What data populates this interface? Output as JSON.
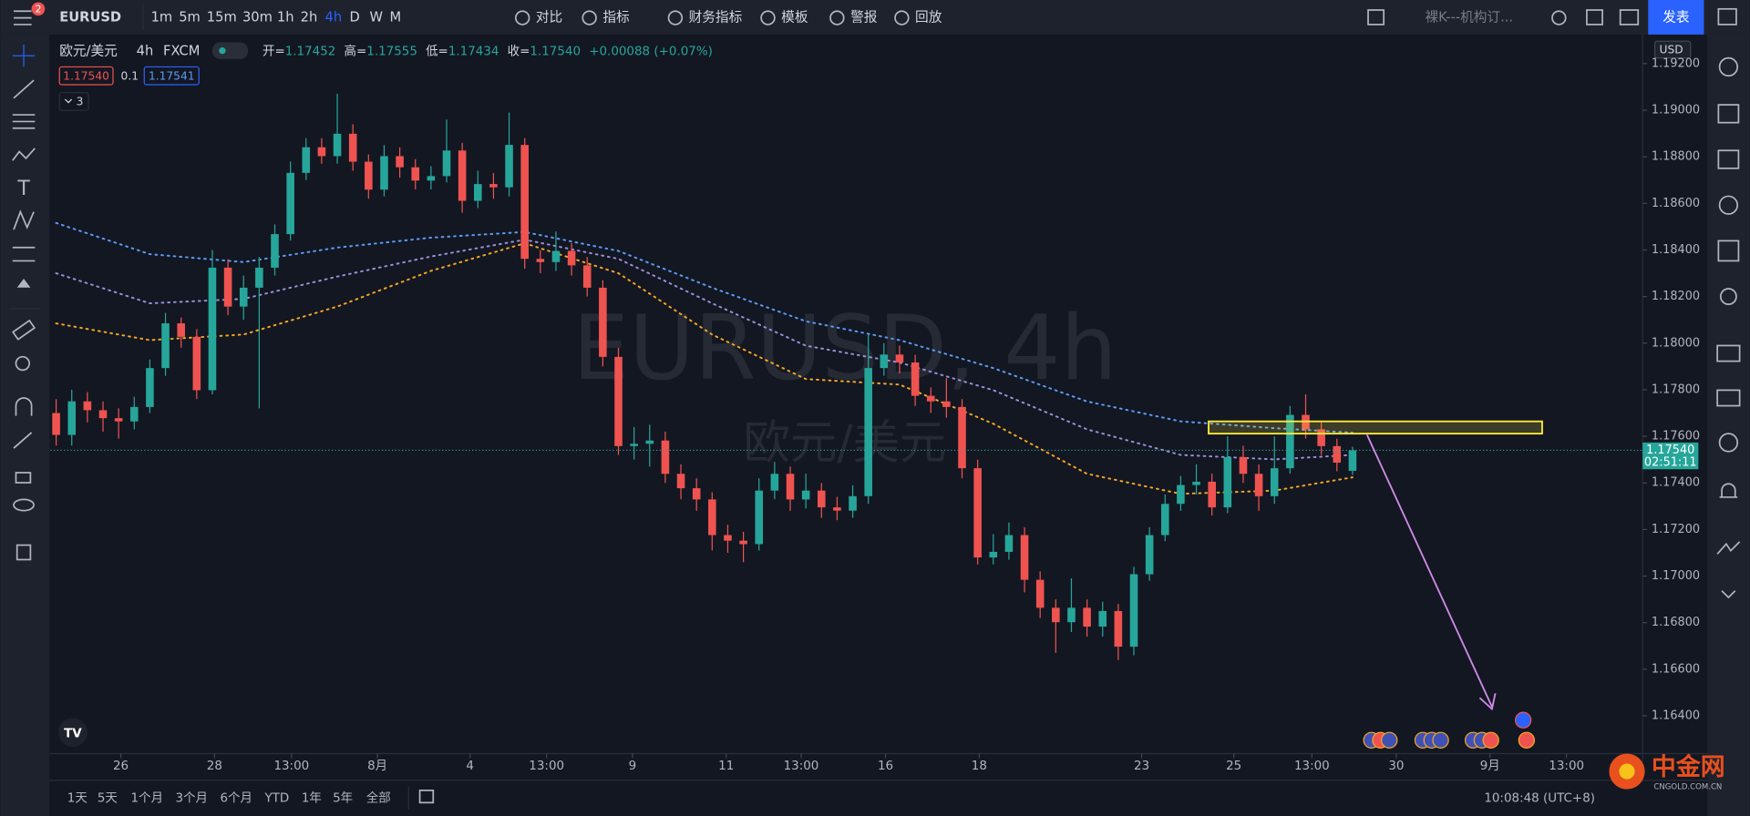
{
  "toolbar": {
    "symbol": "EURUSD",
    "intervals": [
      "1m",
      "5m",
      "15m",
      "30m",
      "1h",
      "2h",
      "4h",
      "D",
      "W",
      "M"
    ],
    "active_interval": "4h",
    "buttons": [
      "对比",
      "指标",
      "财务指标",
      "模板",
      "警报",
      "回放"
    ],
    "layout_name": "裸K---机构订...",
    "publish": "发表",
    "notifications": "2"
  },
  "legend": {
    "open_label": "开=",
    "open": "1.17452",
    "high_label": "高=",
    "high": "1.17555",
    "low_label": "低=",
    "low": "1.17434",
    "close_label": "收=",
    "close": "1.17540",
    "change": "+0.00088 (+0.07%)",
    "sell": "1.17540",
    "spread": "0.1",
    "buy": "1.17541",
    "indicators_count": "3"
  },
  "chart_data": {
    "type": "candlestick",
    "title": "欧元/美元",
    "interval": "4h",
    "source": "FXCM",
    "watermark": "EURUSD, 4h",
    "watermark_sub": "欧元/美元",
    "currency": "USD",
    "up_color": "#26a69a",
    "down_color": "#ef5350",
    "open": [
      1.177,
      1.17606,
      1.1775,
      1.17712,
      1.17678,
      1.17664,
      1.17726,
      1.17893,
      1.18085,
      1.18027,
      1.17798,
      1.18324,
      1.18157,
      1.18238,
      1.18324,
      1.18468,
      1.18731,
      1.18841,
      1.18803,
      1.18899,
      1.18779,
      1.18659,
      1.18803,
      1.18755,
      1.18698,
      1.18717,
      1.18827,
      1.18611,
      1.18683,
      1.18669,
      1.18851,
      1.18362,
      1.18348,
      1.18396,
      1.18334,
      1.18238,
      1.17941,
      1.17558,
      1.17568,
      1.17582,
      1.17439,
      1.17377,
      1.17329,
      1.17176,
      1.17152,
      1.17137,
      1.17367,
      1.17439,
      1.17329,
      1.17367,
      1.17295,
      1.17281,
      1.17343,
      1.17893,
      1.17951,
      1.17917,
      1.17774,
      1.1775,
      1.17726,
      1.17463,
      1.1708,
      1.17104,
      1.17176,
      1.16984,
      1.16864,
      1.16802,
      1.16864,
      1.16783,
      1.1685,
      1.16697,
      1.17008,
      1.17176,
      1.1731,
      1.17391,
      1.17405,
      1.17295,
      1.17511,
      1.17439,
      1.17343,
      1.17463,
      1.17692,
      1.1763,
      1.17558,
      1.17452
    ],
    "high": [
      1.1776,
      1.178,
      1.1779,
      1.1775,
      1.1772,
      1.1777,
      1.1793,
      1.1813,
      1.1811,
      1.1806,
      1.184,
      1.1836,
      1.1829,
      1.1837,
      1.1851,
      1.1878,
      1.1888,
      1.1888,
      1.1907,
      1.1894,
      1.1881,
      1.1885,
      1.1884,
      1.1879,
      1.1876,
      1.1896,
      1.1886,
      1.1874,
      1.1873,
      1.1899,
      1.1888,
      1.184,
      1.1848,
      1.1843,
      1.1837,
      1.1827,
      1.1798,
      1.1764,
      1.1765,
      1.1762,
      1.1748,
      1.1742,
      1.1736,
      1.1722,
      1.1719,
      1.1742,
      1.1749,
      1.1747,
      1.1744,
      1.174,
      1.1734,
      1.1739,
      1.1804,
      1.18,
      1.1799,
      1.1795,
      1.1781,
      1.1785,
      1.1776,
      1.175,
      1.1718,
      1.1723,
      1.1721,
      1.1702,
      1.169,
      1.1699,
      1.169,
      1.1689,
      1.1688,
      1.1704,
      1.1721,
      1.1735,
      1.1743,
      1.1748,
      1.1744,
      1.176,
      1.1756,
      1.1748,
      1.176,
      1.1773,
      1.1778,
      1.1766,
      1.1759,
      1.17555
    ],
    "low": [
      1.1756,
      1.1756,
      1.1766,
      1.1762,
      1.1759,
      1.1763,
      1.177,
      1.1786,
      1.1798,
      1.1776,
      1.1778,
      1.1812,
      1.181,
      1.1772,
      1.1829,
      1.1844,
      1.187,
      1.1877,
      1.1877,
      1.1874,
      1.1862,
      1.1863,
      1.1871,
      1.1866,
      1.1866,
      1.1869,
      1.1856,
      1.1858,
      1.1862,
      1.1863,
      1.1832,
      1.183,
      1.1831,
      1.1829,
      1.182,
      1.179,
      1.1752,
      1.175,
      1.1747,
      1.174,
      1.1733,
      1.1728,
      1.1711,
      1.171,
      1.1706,
      1.1711,
      1.1733,
      1.1728,
      1.1729,
      1.1725,
      1.1724,
      1.1725,
      1.1731,
      1.1786,
      1.1787,
      1.1773,
      1.177,
      1.1768,
      1.1742,
      1.1705,
      1.1705,
      1.1707,
      1.1693,
      1.1682,
      1.1667,
      1.1676,
      1.1674,
      1.1674,
      1.1664,
      1.1666,
      1.1698,
      1.1715,
      1.1728,
      1.1735,
      1.1726,
      1.1727,
      1.174,
      1.1728,
      1.1731,
      1.1744,
      1.1759,
      1.1752,
      1.1745,
      1.17434
    ],
    "close": [
      1.17606,
      1.1775,
      1.17712,
      1.17678,
      1.17664,
      1.17726,
      1.17893,
      1.18085,
      1.18027,
      1.17798,
      1.18324,
      1.18157,
      1.18238,
      1.18324,
      1.18468,
      1.18731,
      1.18841,
      1.18803,
      1.18899,
      1.18779,
      1.18659,
      1.18803,
      1.18755,
      1.18698,
      1.18717,
      1.18827,
      1.18611,
      1.18683,
      1.18669,
      1.18851,
      1.18362,
      1.18348,
      1.18396,
      1.18334,
      1.18238,
      1.17941,
      1.17558,
      1.17568,
      1.17582,
      1.17439,
      1.17377,
      1.17329,
      1.17176,
      1.17152,
      1.17137,
      1.17367,
      1.17439,
      1.17329,
      1.17367,
      1.17295,
      1.17281,
      1.17343,
      1.17893,
      1.17951,
      1.17917,
      1.17774,
      1.1775,
      1.17726,
      1.17463,
      1.1708,
      1.17104,
      1.17176,
      1.16984,
      1.16864,
      1.16802,
      1.16864,
      1.16783,
      1.1685,
      1.16697,
      1.17008,
      1.17176,
      1.1731,
      1.17391,
      1.17405,
      1.17295,
      1.17511,
      1.17439,
      1.17343,
      1.17463,
      1.17692,
      1.1763,
      1.17558,
      1.17487,
      1.1754
    ],
    "ma_lines": [
      {
        "color": "#5b9cf6",
        "x": [
          0,
          6,
          12,
          18,
          24,
          30,
          36,
          42,
          48,
          54,
          60,
          66,
          72,
          78,
          83
        ],
        "values": [
          1.18516,
          1.18382,
          1.18348,
          1.1841,
          1.18453,
          1.18477,
          1.18396,
          1.18238,
          1.18094,
          1.18013,
          1.17893,
          1.1775,
          1.17664,
          1.17635,
          1.17616
        ]
      },
      {
        "color": "#9c8fd9",
        "x": [
          0,
          6,
          12,
          18,
          24,
          30,
          36,
          42,
          48,
          54,
          60,
          66,
          72,
          78,
          83
        ],
        "values": [
          1.183,
          1.18171,
          1.1819,
          1.18286,
          1.18372,
          1.18444,
          1.18362,
          1.18171,
          1.17989,
          1.17917,
          1.17798,
          1.1763,
          1.1752,
          1.17501,
          1.1752
        ]
      },
      {
        "color": "#f5a623",
        "x": [
          0,
          6,
          12,
          18,
          24,
          30,
          36,
          42,
          48,
          54,
          60,
          66,
          72,
          78,
          83
        ],
        "values": [
          1.18085,
          1.18013,
          1.18037,
          1.18157,
          1.1831,
          1.18429,
          1.183,
          1.18037,
          1.17846,
          1.17822,
          1.17654,
          1.17439,
          1.17353,
          1.17367,
          1.17424
        ]
      }
    ],
    "last_price_label": "1.17540",
    "countdown": "02:51:11",
    "xlim": [
      -0.36,
      101.57
    ],
    "xticks": [
      {
        "value": 4.14,
        "label": "26"
      },
      {
        "value": 10.14,
        "label": "28"
      },
      {
        "value": 15.07,
        "label": "13:00"
      },
      {
        "value": 20.57,
        "label": "8月"
      },
      {
        "value": 26.5,
        "label": "4"
      },
      {
        "value": 31.4,
        "label": "13:00"
      },
      {
        "value": 36.9,
        "label": "9"
      },
      {
        "value": 42.9,
        "label": "11"
      },
      {
        "value": 47.7,
        "label": "13:00"
      },
      {
        "value": 53.1,
        "label": "16"
      },
      {
        "value": 59.1,
        "label": "18"
      },
      {
        "value": 69.5,
        "label": "23"
      },
      {
        "value": 75.4,
        "label": "25"
      },
      {
        "value": 80.4,
        "label": "13:00"
      },
      {
        "value": 85.8,
        "label": "30"
      },
      {
        "value": 91.8,
        "label": "9月"
      },
      {
        "value": 96.7,
        "label": "13:00"
      }
    ],
    "ylim": [
      1.16238,
      1.1932
    ],
    "yticks": [
      {
        "value": 1.192,
        "label": "1.19200"
      },
      {
        "value": 1.19,
        "label": "1.19000"
      },
      {
        "value": 1.188,
        "label": "1.18800"
      },
      {
        "value": 1.186,
        "label": "1.18600"
      },
      {
        "value": 1.184,
        "label": "1.18400"
      },
      {
        "value": 1.182,
        "label": "1.18200"
      },
      {
        "value": 1.18,
        "label": "1.18000"
      },
      {
        "value": 1.178,
        "label": "1.17800"
      },
      {
        "value": 1.176,
        "label": "1.17600"
      },
      {
        "value": 1.174,
        "label": "1.17400"
      },
      {
        "value": 1.172,
        "label": "1.17200"
      },
      {
        "value": 1.17,
        "label": "1.17000"
      },
      {
        "value": 1.168,
        "label": "1.16800"
      },
      {
        "value": 1.166,
        "label": "1.16600"
      },
      {
        "value": 1.164,
        "label": "1.16400"
      }
    ]
  },
  "bottom_bar": {
    "ranges": [
      "1天",
      "5天",
      "1个月",
      "3个月",
      "6个月",
      "YTD",
      "1年",
      "5年",
      "全部"
    ],
    "clock": "10:08:48 (UTC+8)"
  },
  "logo": {
    "name": "中金网",
    "domain": "CNGOLD.COM.CN"
  }
}
